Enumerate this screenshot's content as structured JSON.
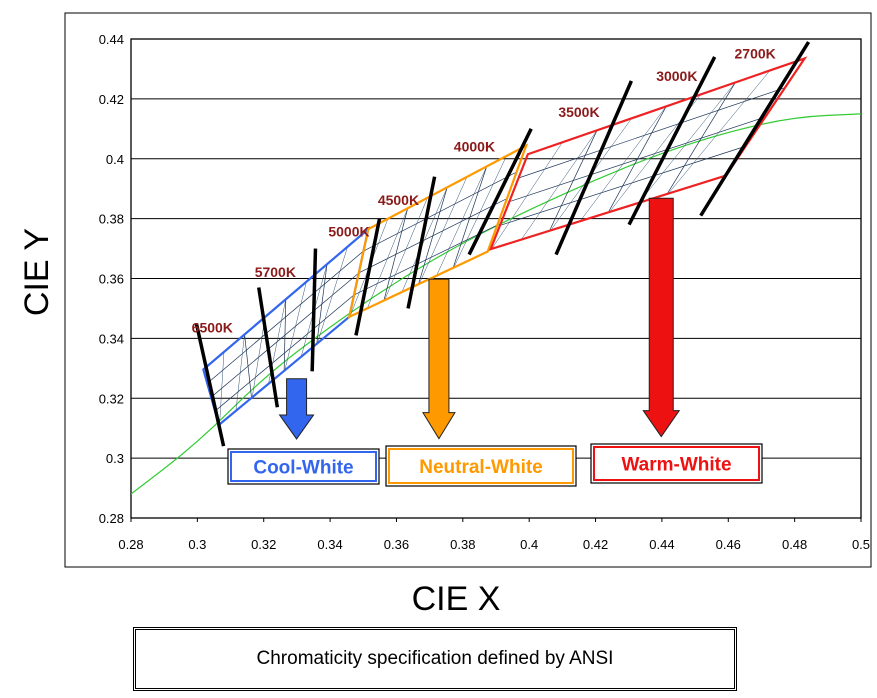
{
  "caption": "Chromaticity specification defined by ANSI",
  "chart_data": {
    "type": "scatter",
    "xlabel": "CIE X",
    "ylabel": "CIE Y",
    "xlim": [
      0.28,
      0.5
    ],
    "ylim": [
      0.28,
      0.44
    ],
    "x_ticks": [
      "0.28",
      "0.3",
      "0.32",
      "0.34",
      "0.36",
      "0.38",
      "0.4",
      "0.42",
      "0.44",
      "0.46",
      "0.48",
      "0.5"
    ],
    "y_ticks": [
      "0.28",
      "0.3",
      "0.32",
      "0.34",
      "0.36",
      "0.38",
      "0.4",
      "0.42",
      "0.44"
    ],
    "grid": "horizontal",
    "planckian_locus": {
      "color": "#33cc33",
      "points": [
        [
          0.28,
          0.288
        ],
        [
          0.3,
          0.305
        ],
        [
          0.32,
          0.327
        ],
        [
          0.34,
          0.344
        ],
        [
          0.36,
          0.359
        ],
        [
          0.38,
          0.372
        ],
        [
          0.4,
          0.383
        ],
        [
          0.42,
          0.393
        ],
        [
          0.44,
          0.402
        ],
        [
          0.46,
          0.409
        ],
        [
          0.48,
          0.414
        ],
        [
          0.5,
          0.415
        ]
      ]
    },
    "cct_labels": [
      {
        "text": "6500K",
        "x": 0.3045,
        "y": 0.342
      },
      {
        "text": "5700K",
        "x": 0.3235,
        "y": 0.3605
      },
      {
        "text": "5000K",
        "x": 0.3457,
        "y": 0.374
      },
      {
        "text": "4500K",
        "x": 0.3606,
        "y": 0.3845
      },
      {
        "text": "4000K",
        "x": 0.3835,
        "y": 0.4025
      },
      {
        "text": "3500K",
        "x": 0.415,
        "y": 0.414
      },
      {
        "text": "3000K",
        "x": 0.4445,
        "y": 0.426
      },
      {
        "text": "2700K",
        "x": 0.4681,
        "y": 0.4335
      }
    ],
    "isotemp_lines": [
      [
        [
          0.2997,
          0.345
        ],
        [
          0.3079,
          0.304
        ]
      ],
      [
        [
          0.3185,
          0.357
        ],
        [
          0.3241,
          0.317
        ]
      ],
      [
        [
          0.3356,
          0.37
        ],
        [
          0.3346,
          0.329
        ]
      ],
      [
        [
          0.3549,
          0.38
        ],
        [
          0.3478,
          0.341
        ]
      ],
      [
        [
          0.3715,
          0.394
        ],
        [
          0.3635,
          0.35
        ]
      ],
      [
        [
          0.4006,
          0.41
        ],
        [
          0.3819,
          0.368
        ]
      ],
      [
        [
          0.4308,
          0.426
        ],
        [
          0.4081,
          0.368
        ]
      ],
      [
        [
          0.4559,
          0.434
        ],
        [
          0.4301,
          0.378
        ]
      ],
      [
        [
          0.4842,
          0.439
        ],
        [
          0.4517,
          0.381
        ]
      ]
    ],
    "quadrangles": [
      {
        "name": "Cool-White",
        "color": "#3366ee",
        "points": [
          [
            0.3018,
            0.3296
          ],
          [
            0.3515,
            0.3765
          ],
          [
            0.3458,
            0.3472
          ],
          [
            0.3065,
            0.3111
          ]
        ]
      },
      {
        "name": "Neutral-White",
        "color": "#ff9900",
        "points": [
          [
            0.3515,
            0.3765
          ],
          [
            0.3991,
            0.4044
          ],
          [
            0.3875,
            0.369
          ],
          [
            0.3458,
            0.3472
          ]
        ]
      },
      {
        "name": "Warm-White",
        "color": "#ee2222",
        "points": [
          [
            0.3996,
            0.4015
          ],
          [
            0.483,
            0.4335
          ],
          [
            0.4593,
            0.3944
          ],
          [
            0.3884,
            0.3698
          ]
        ]
      }
    ],
    "categories": [
      {
        "label": "Cool-White",
        "color": "#3366ee",
        "arrow_x": 0.3299,
        "arrow_top": 0.3265,
        "arrow_tip": 0.3064
      },
      {
        "label": "Neutral-White",
        "color": "#ff9900",
        "arrow_x": 0.3728,
        "arrow_top": 0.3598,
        "arrow_tip": 0.3065
      },
      {
        "label": "Warm-White",
        "color": "#ee1111",
        "arrow_x": 0.4398,
        "arrow_top": 0.3868,
        "arrow_tip": 0.3072
      }
    ]
  }
}
